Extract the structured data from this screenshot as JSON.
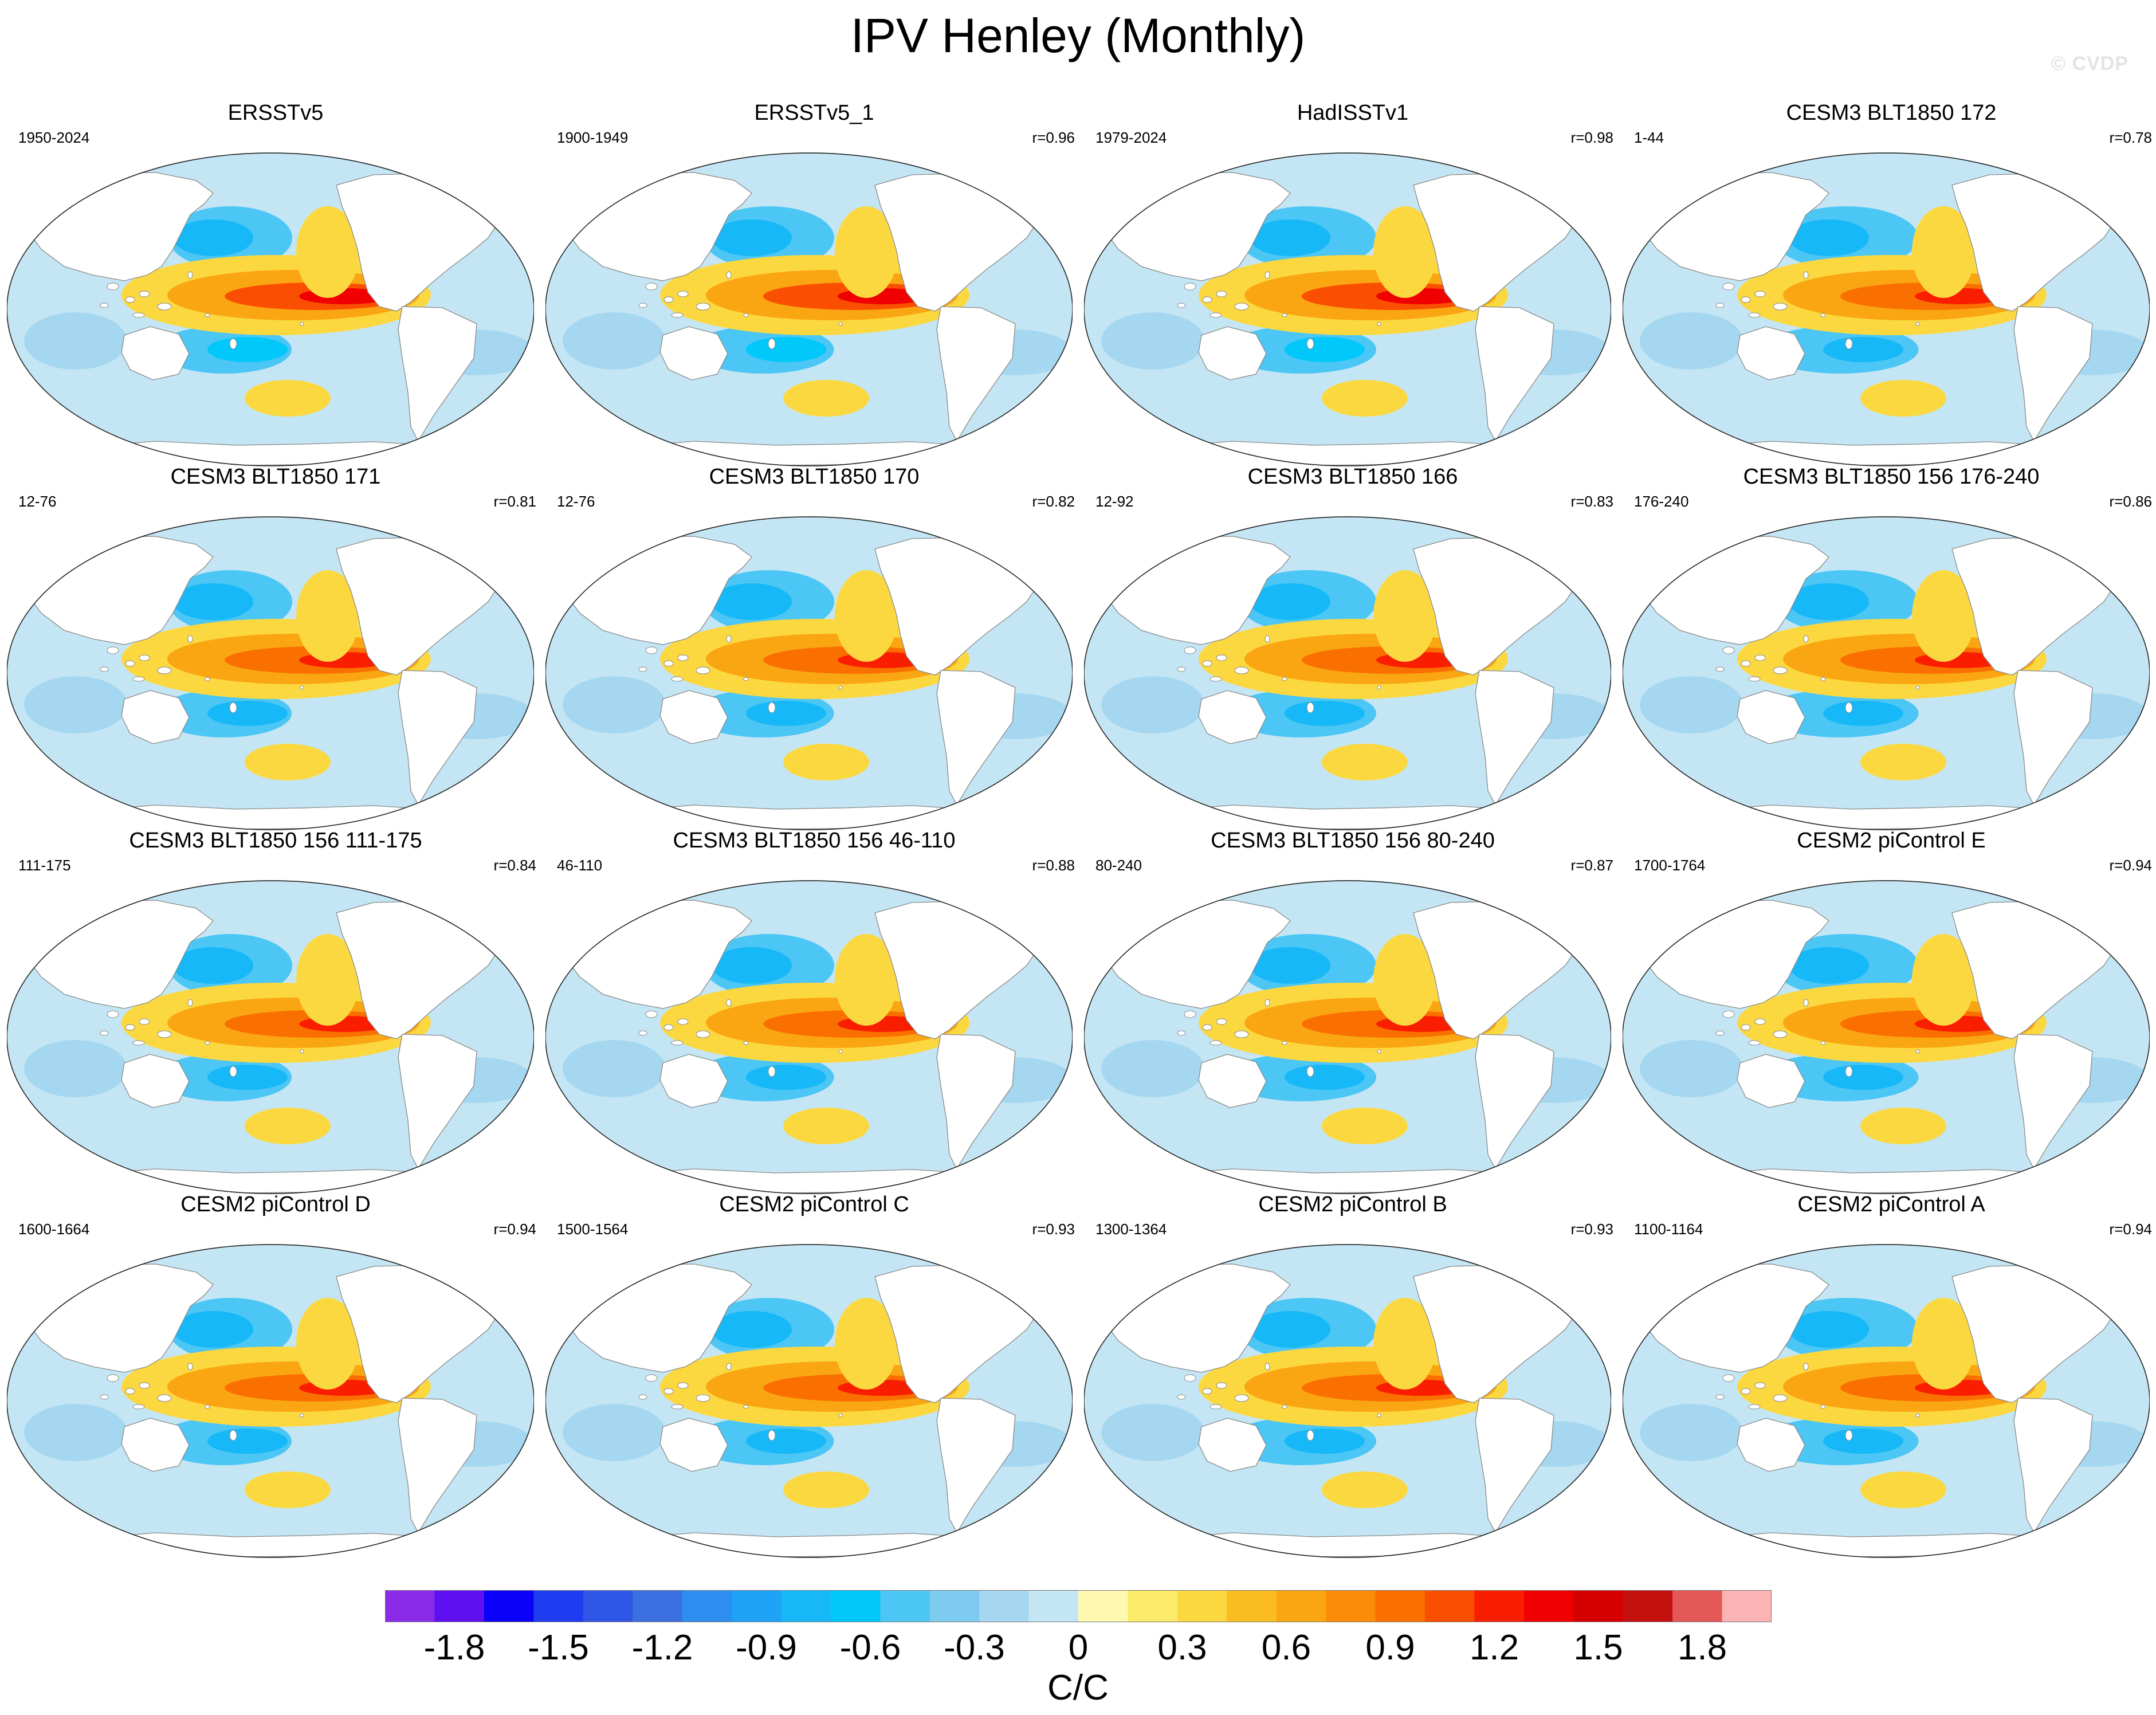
{
  "chart_data": {
    "type": "heatmap",
    "title": "IPV Henley (Monthly)",
    "watermark": "© CVDP",
    "projection": "Robinson (Pacific-centered)",
    "panels": [
      {
        "title": "ERSSTv5",
        "period": "1950-2024",
        "r": ""
      },
      {
        "title": "ERSSTv5_1",
        "period": "1900-1949",
        "r": "r=0.96"
      },
      {
        "title": "HadISSTv1",
        "period": "1979-2024",
        "r": "r=0.98"
      },
      {
        "title": "CESM3 BLT1850 172",
        "period": "1-44",
        "r": "r=0.78"
      },
      {
        "title": "CESM3 BLT1850 171",
        "period": "12-76",
        "r": "r=0.81"
      },
      {
        "title": "CESM3 BLT1850 170",
        "period": "12-76",
        "r": "r=0.82"
      },
      {
        "title": "CESM3 BLT1850 166",
        "period": "12-92",
        "r": "r=0.83"
      },
      {
        "title": "CESM3 BLT1850 156 176-240",
        "period": "176-240",
        "r": "r=0.86"
      },
      {
        "title": "CESM3 BLT1850 156 111-175",
        "period": "111-175",
        "r": "r=0.84"
      },
      {
        "title": "CESM3 BLT1850 156 46-110",
        "period": "46-110",
        "r": "r=0.88"
      },
      {
        "title": "CESM3 BLT1850 156 80-240",
        "period": "80-240",
        "r": "r=0.87"
      },
      {
        "title": "CESM2 piControl E",
        "period": "1700-1764",
        "r": "r=0.94"
      },
      {
        "title": "CESM2 piControl D",
        "period": "1600-1664",
        "r": "r=0.94"
      },
      {
        "title": "CESM2 piControl C",
        "period": "1500-1564",
        "r": "r=0.93"
      },
      {
        "title": "CESM2 piControl B",
        "period": "1300-1364",
        "r": "r=0.93"
      },
      {
        "title": "CESM2 piControl A",
        "period": "1100-1164",
        "r": "r=0.94"
      }
    ],
    "colorbar": {
      "units": "C/C",
      "tick_labels": [
        "-1.8",
        "-1.5",
        "-1.2",
        "-0.9",
        "-0.6",
        "-0.3",
        "0",
        "0.3",
        "0.6",
        "0.9",
        "1.2",
        "1.5",
        "1.8"
      ],
      "colors": [
        "#8a2be8",
        "#5f10f0",
        "#0b00f8",
        "#1e3cf0",
        "#2f56e6",
        "#3a70e0",
        "#2e8ef0",
        "#1ea2f5",
        "#16b8f7",
        "#00c8fa",
        "#4bc6f5",
        "#7ecbf0",
        "#a6d7f0",
        "#c4e6f4",
        "#fff8b0",
        "#fcec6a",
        "#fcd840",
        "#fbbc20",
        "#faa612",
        "#fa8c08",
        "#fa7000",
        "#fa4f00",
        "#fa1e00",
        "#f00000",
        "#d50000",
        "#c51010",
        "#e45858",
        "#fab4b4"
      ],
      "range": [
        -2.0,
        2.0
      ],
      "interval": 0.15
    }
  }
}
